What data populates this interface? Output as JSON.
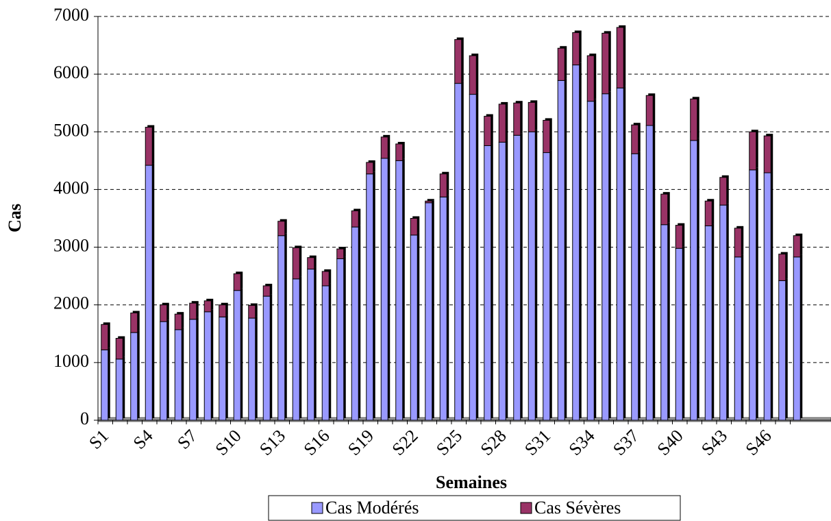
{
  "chart_data": {
    "type": "stacked_bar",
    "x_label": "Semaines",
    "y_label": "Cas",
    "categories": [
      "S1",
      null,
      null,
      "S4",
      null,
      null,
      "S7",
      null,
      null,
      "S10",
      null,
      null,
      "S13",
      null,
      null,
      "S16",
      null,
      null,
      "S19",
      null,
      null,
      "S22",
      null,
      null,
      "S25",
      null,
      null,
      "S28",
      null,
      null,
      "S31",
      null,
      null,
      "S34",
      null,
      null,
      "S37",
      null,
      null,
      "S40",
      null,
      null,
      "S43",
      null,
      null,
      "S46",
      null,
      null
    ],
    "series": [
      {
        "name": "Cas Modérés",
        "color": "#9999ff",
        "values": [
          1220,
          1060,
          1520,
          4420,
          1710,
          1570,
          1750,
          1880,
          1790,
          2250,
          1770,
          2150,
          3200,
          2450,
          2620,
          2330,
          2800,
          3350,
          4270,
          4540,
          4500,
          3210,
          3770,
          3870,
          5840,
          5650,
          4760,
          4820,
          4940,
          5000,
          4640,
          5890,
          6160,
          5530,
          5660,
          5760,
          4620,
          5110,
          3390,
          2980,
          4850,
          3370,
          3730,
          2830,
          4340,
          4290,
          2420,
          2830
        ]
      },
      {
        "name": "Cas Sévères",
        "color": "#993366",
        "values": [
          440,
          360,
          340,
          660,
          290,
          270,
          280,
          190,
          210,
          290,
          220,
          180,
          250,
          540,
          200,
          250,
          170,
          280,
          200,
          370,
          290,
          290,
          30,
          400,
          760,
          670,
          510,
          660,
          560,
          510,
          560,
          560,
          560,
          790,
          1050,
          1050,
          500,
          520,
          530,
          400,
          720,
          430,
          480,
          500,
          660,
          640,
          460,
          370
        ]
      }
    ],
    "ylim": [
      0,
      7000
    ],
    "yticks": [
      0,
      1000,
      2000,
      3000,
      4000,
      5000,
      6000,
      7000
    ],
    "grid": true
  }
}
